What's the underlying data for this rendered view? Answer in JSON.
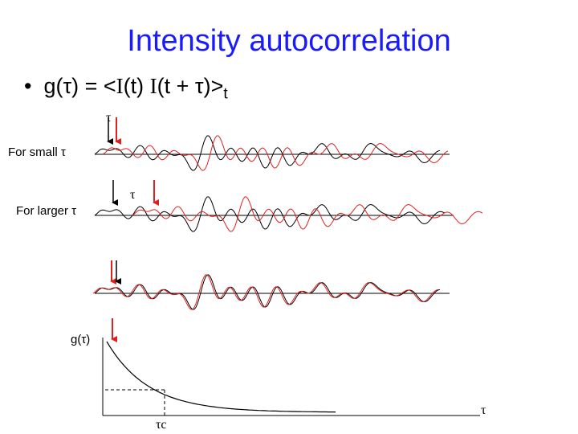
{
  "title": "Intensity autocorrelation",
  "bullet": {
    "lhs": "g(τ) = <",
    "i1": "I",
    "mid1": "(t) ",
    "i2": "I",
    "mid2": "(t + τ)>",
    "sub": "t"
  },
  "labels": {
    "tau_top": "τ",
    "for_small": "For small τ",
    "for_larger": "For larger τ",
    "tau_mid": "τ",
    "g_tau": "g(τ)",
    "tau_axis": "τ",
    "tau_c": "τc"
  },
  "colors": {
    "title": "#1a1aff",
    "signal_black": "#000000",
    "signal_red": "#e02020"
  }
}
